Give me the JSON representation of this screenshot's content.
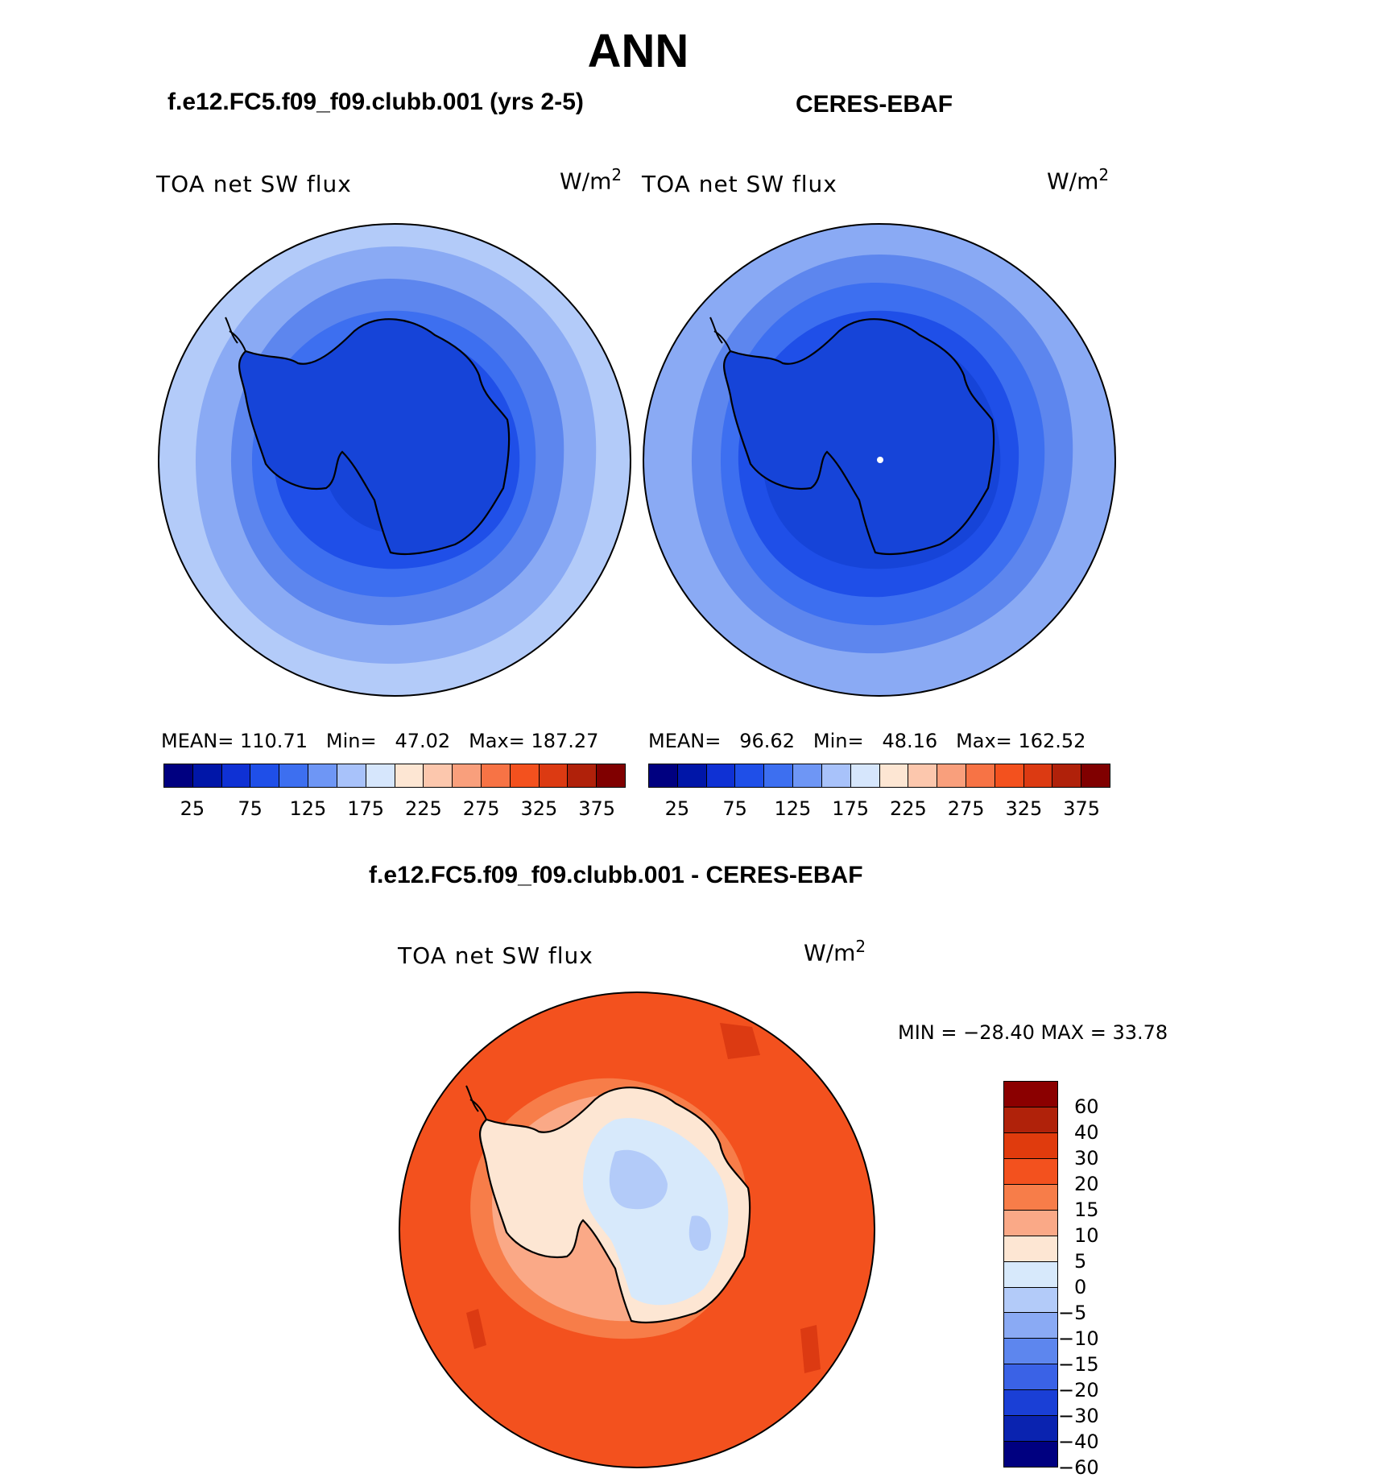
{
  "title": "ANN",
  "panels": {
    "model": {
      "header": "f.e12.FC5.f09_f09.clubb.001 (yrs 2-5)",
      "variable": "TOA net SW flux",
      "units_base": "W/m",
      "units_exp": "2",
      "stats": {
        "mean_label": "MEAN=",
        "mean": "110.71",
        "min_label": "Min=",
        "min": "47.02",
        "max_label": "Max=",
        "max": "187.27"
      }
    },
    "obs": {
      "header": "CERES-EBAF",
      "variable": "TOA net SW flux",
      "units_base": "W/m",
      "units_exp": "2",
      "stats": {
        "mean_label": "MEAN=",
        "mean": "96.62",
        "min_label": "Min=",
        "min": "48.16",
        "max_label": "Max=",
        "max": "162.52"
      }
    },
    "diff": {
      "header": "f.e12.FC5.f09_f09.clubb.001 - CERES-EBAF",
      "variable": "TOA net SW flux",
      "units_base": "W/m",
      "units_exp": "2",
      "minmax": "MIN = −28.40 MAX =   33.78"
    }
  },
  "colorbar_abs": {
    "colors": [
      "#000080",
      "#0016a8",
      "#0f31d4",
      "#1f4fe8",
      "#3d6ff0",
      "#6e96f5",
      "#a8c2fa",
      "#d6e6fc",
      "#fde6d3",
      "#fcc7ad",
      "#f99f7c",
      "#f77345",
      "#f3511e",
      "#dc3a12",
      "#b0210a",
      "#800000"
    ],
    "ticks": [
      "25",
      "75",
      "125",
      "175",
      "225",
      "275",
      "325",
      "375"
    ]
  },
  "colorbar_diff": {
    "colors": [
      "#8b0000",
      "#b0220a",
      "#e03b0d",
      "#f3511e",
      "#f77d49",
      "#faa987",
      "#fde6d3",
      "#d7e9fb",
      "#b3cbf9",
      "#8aaaf4",
      "#5d86ee",
      "#3a62e6",
      "#1a3fd6",
      "#0a23b0",
      "#000080"
    ],
    "ticks": [
      "60",
      "40",
      "30",
      "20",
      "15",
      "10",
      "5",
      "0",
      "−5",
      "−10",
      "−15",
      "−20",
      "−30",
      "−40",
      "−60"
    ]
  }
}
